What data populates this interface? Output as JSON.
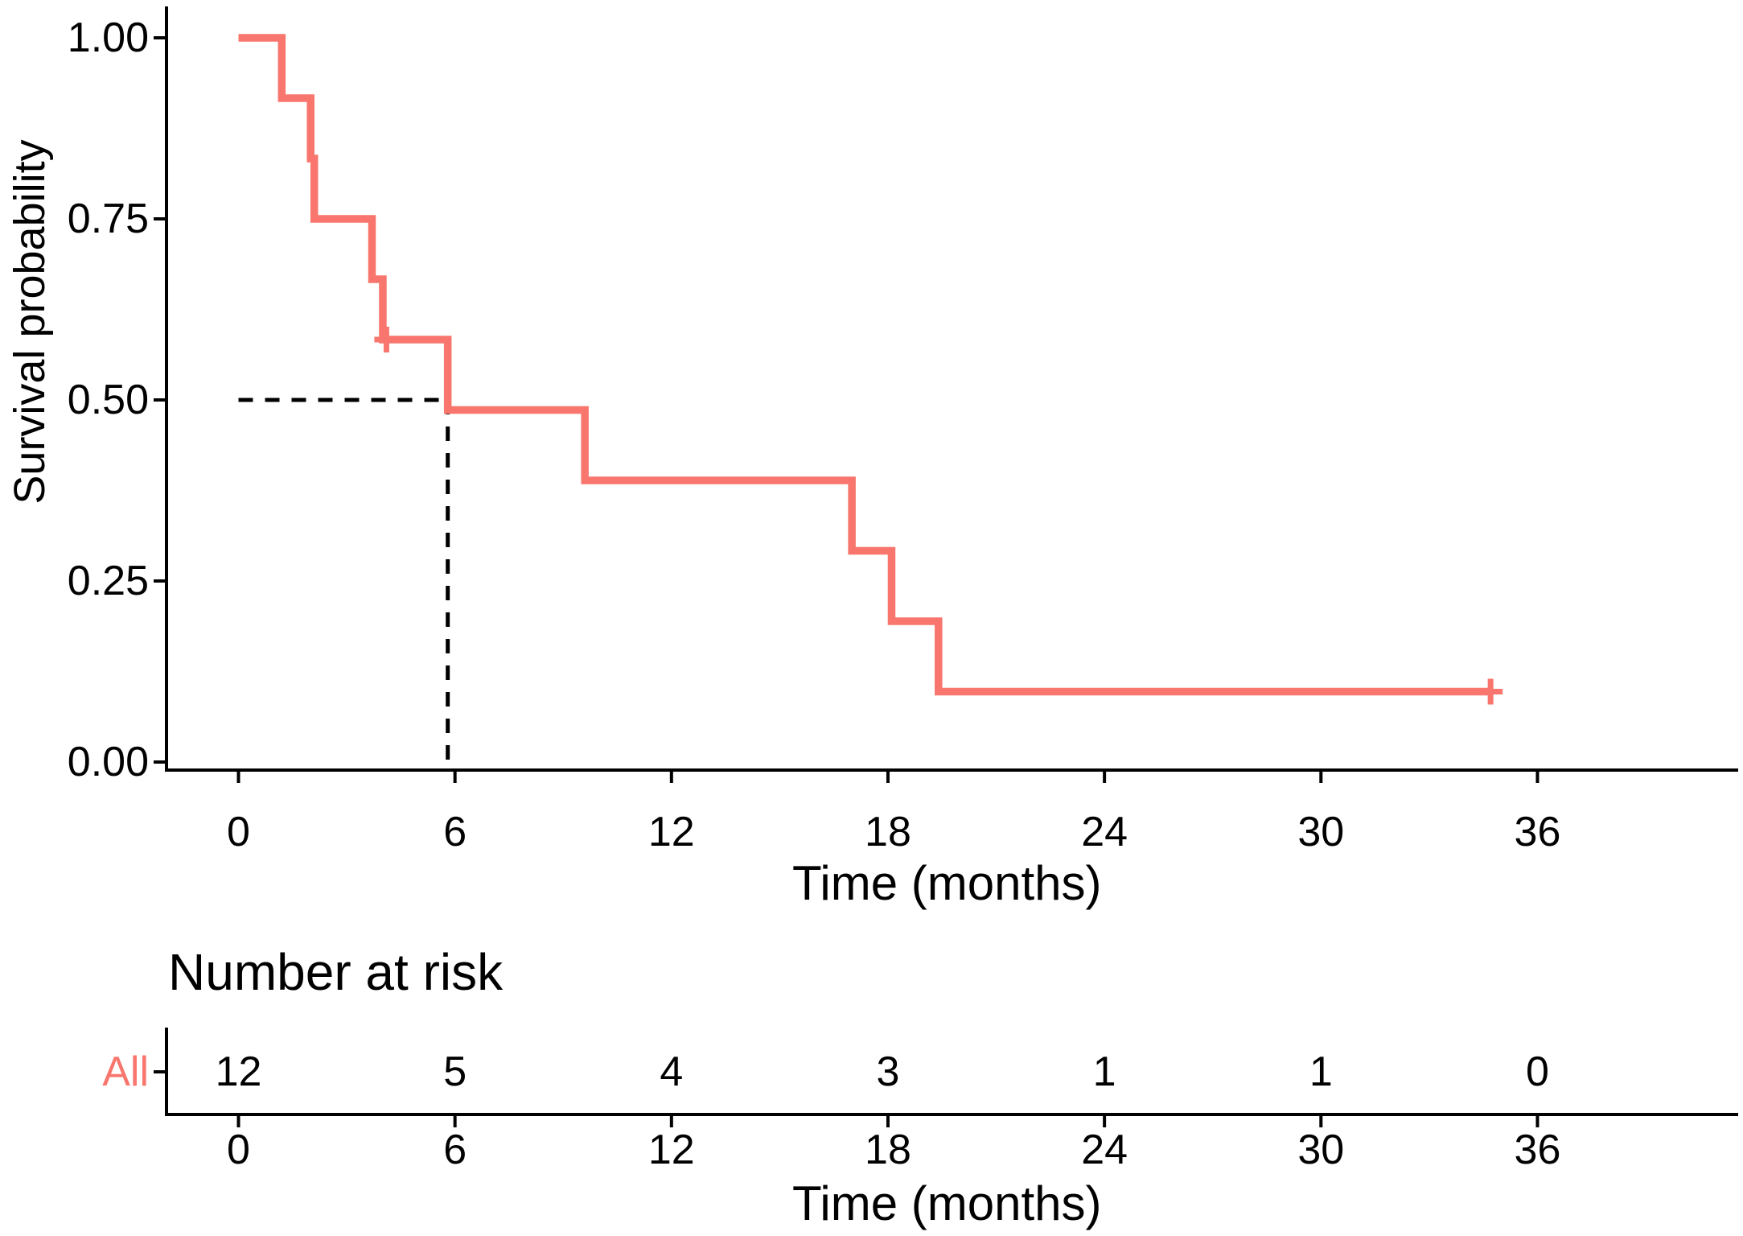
{
  "figure": {
    "background": "#ffffff",
    "axis_color": "#000000",
    "text_color": "#000000",
    "accent_color": "#F8766D"
  },
  "main_plot": {
    "ylabel": "Survival probability",
    "xlabel": "Time (months)",
    "y_ticks": [
      "1.00",
      "0.75",
      "0.50",
      "0.25",
      "0.00"
    ],
    "y_tick_values": [
      1,
      0.75,
      0.5,
      0.25,
      0
    ],
    "x_ticks": [
      "0",
      "6",
      "12",
      "18",
      "24",
      "30",
      "36"
    ],
    "x_tick_values": [
      0,
      6,
      12,
      18,
      24,
      30,
      36
    ]
  },
  "chart_data": {
    "type": "line",
    "subtype": "kaplan-meier-step-curve",
    "title": "",
    "xlabel": "Time (months)",
    "ylabel": "Survival probability",
    "xlim": [
      0,
      41.5
    ],
    "ylim": [
      0,
      1
    ],
    "x_ticks": [
      0,
      6,
      12,
      18,
      24,
      30,
      36
    ],
    "y_ticks": [
      0,
      0.25,
      0.5,
      0.75,
      1
    ],
    "grid": false,
    "legend": false,
    "series": [
      {
        "name": "All",
        "color": "#F8766D",
        "steps": [
          {
            "t": 0.0,
            "s": 1.0
          },
          {
            "t": 1.2,
            "s": 0.9167
          },
          {
            "t": 2.0,
            "s": 0.8333
          },
          {
            "t": 2.1,
            "s": 0.75
          },
          {
            "t": 3.7,
            "s": 0.6667
          },
          {
            "t": 4.0,
            "s": 0.5833
          },
          {
            "t": 5.8,
            "s": 0.4861
          },
          {
            "t": 9.6,
            "s": 0.3889
          },
          {
            "t": 17.0,
            "s": 0.2917
          },
          {
            "t": 18.1,
            "s": 0.1944
          },
          {
            "t": 19.4,
            "s": 0.0972
          }
        ],
        "end_time": 34.7,
        "censor_marks": [
          {
            "t": 4.1,
            "s": 0.5833
          },
          {
            "t": 34.7,
            "s": 0.0972
          }
        ]
      }
    ],
    "median_annotation": {
      "time": 5.8,
      "survival": 0.5,
      "line_style": "dashed",
      "color": "#000000"
    }
  },
  "risk_table": {
    "title": "Number at risk",
    "group_label": "All",
    "group_color": "#F8766D",
    "times": [
      0,
      6,
      12,
      18,
      24,
      30,
      36
    ],
    "time_labels": [
      "0",
      "6",
      "12",
      "18",
      "24",
      "30",
      "36"
    ],
    "counts": [
      "12",
      "5",
      "4",
      "3",
      "1",
      "1",
      "0"
    ],
    "xlabel": "Time (months)"
  }
}
